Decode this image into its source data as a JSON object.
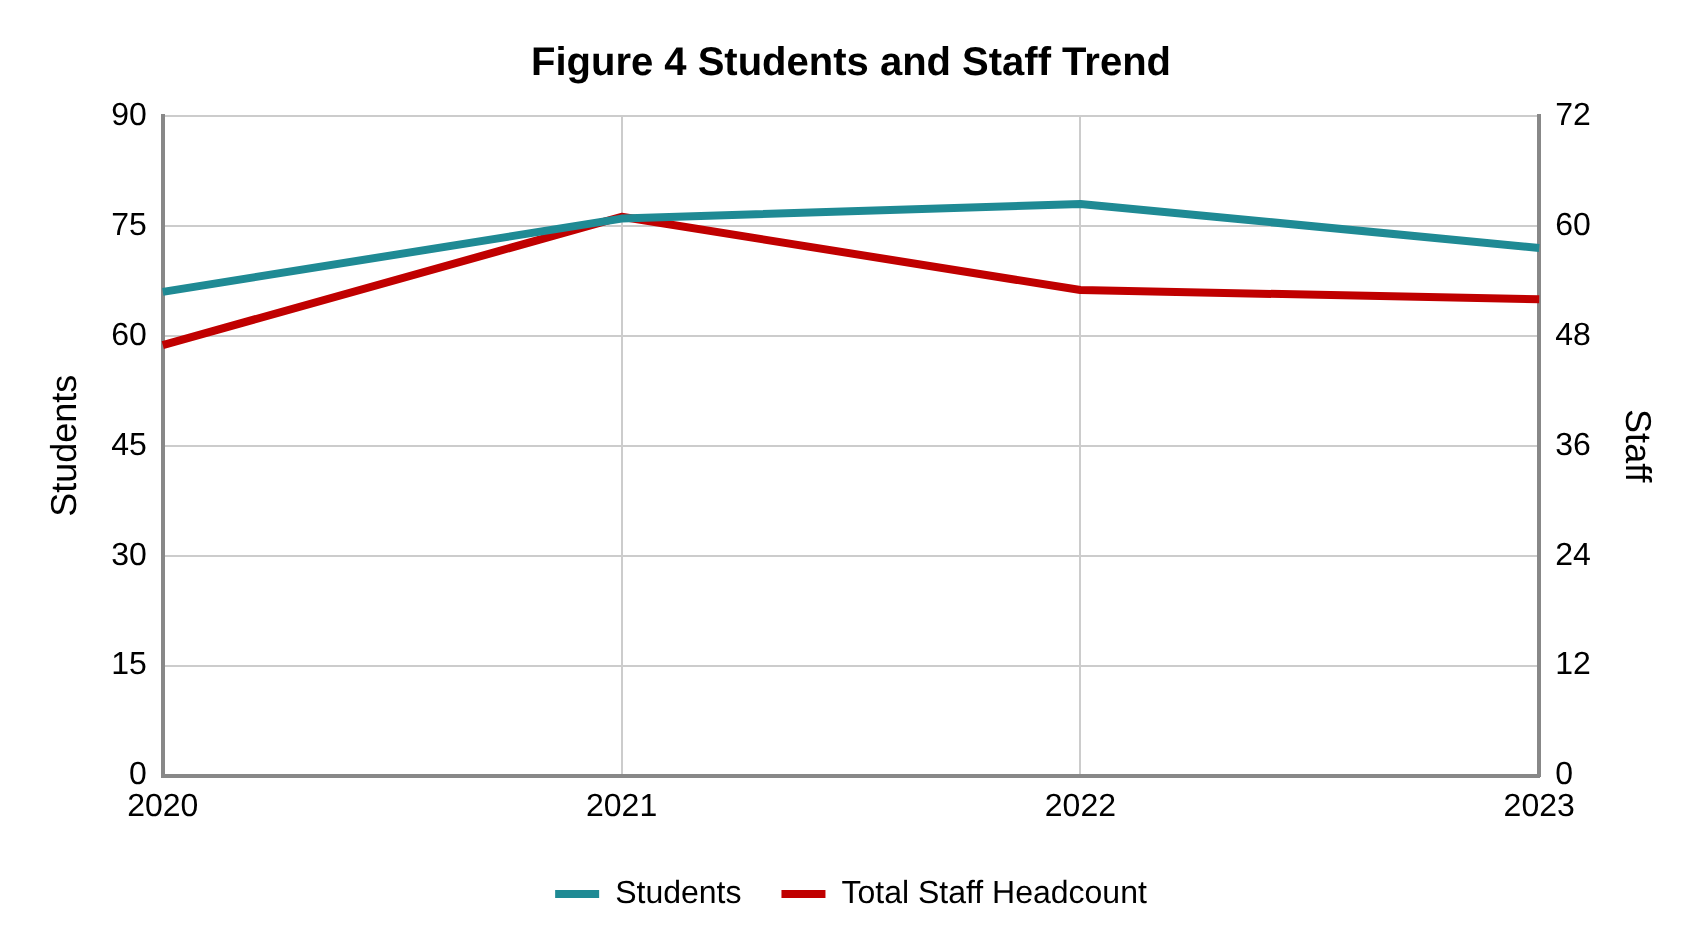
{
  "chart_data": {
    "type": "line",
    "title": "Figure 4 Students and Staff Trend",
    "ylabel": "Students",
    "y2label": "Staff",
    "categories": [
      "2020",
      "2021",
      "2022",
      "2023"
    ],
    "series": [
      {
        "name": "Students",
        "color": "#1f8a94",
        "values": [
          66,
          76,
          78,
          72
        ]
      },
      {
        "name": "Total Staff Headcount",
        "color": "#c00000",
        "values": [
          47,
          61,
          53,
          52
        ],
        "axis": "y2"
      }
    ],
    "ylim": [
      0,
      90
    ],
    "yticks": [
      0,
      15,
      30,
      45,
      60,
      75,
      90
    ],
    "y2lim": [
      0,
      72
    ],
    "y2ticks": [
      0,
      12,
      24,
      36,
      48,
      60,
      72
    ],
    "grid": true,
    "legend": "bottom",
    "marker": "none",
    "line_style": "solid"
  }
}
